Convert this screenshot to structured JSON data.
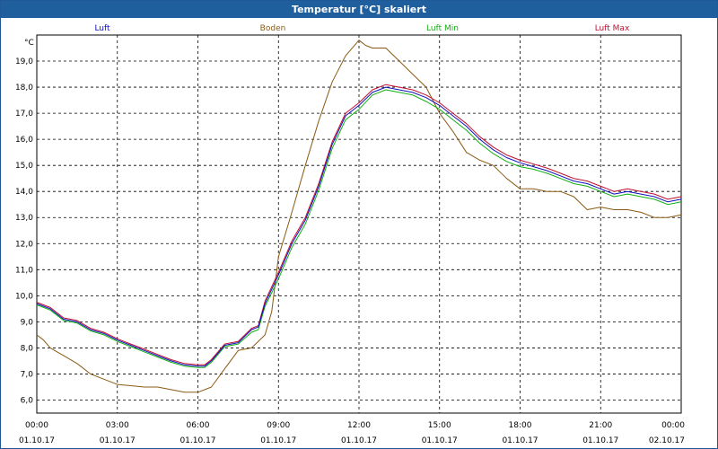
{
  "window": {
    "title": "Temperatur [°C] skaliert"
  },
  "chart_data": {
    "type": "line",
    "title": "Temperatur [°C] skaliert",
    "ylabel": "°C",
    "xlabel": "",
    "ylim": [
      5.5,
      20.0
    ],
    "xlim": [
      0,
      24
    ],
    "grid": true,
    "legend_position": "top",
    "y_ticks": [
      "6,0",
      "7,0",
      "8,0",
      "9,0",
      "10,0",
      "11,0",
      "12,0",
      "13,0",
      "14,0",
      "15,0",
      "16,0",
      "17,0",
      "18,0",
      "19,0"
    ],
    "y_tick_values": [
      6,
      7,
      8,
      9,
      10,
      11,
      12,
      13,
      14,
      15,
      16,
      17,
      18,
      19
    ],
    "x_tick_values": [
      0,
      3,
      6,
      9,
      12,
      15,
      18,
      21,
      24
    ],
    "x_tick_times": [
      "00:00",
      "03:00",
      "06:00",
      "09:00",
      "12:00",
      "15:00",
      "18:00",
      "21:00",
      "00:00"
    ],
    "x_tick_dates": [
      "01.10.17",
      "01.10.17",
      "01.10.17",
      "01.10.17",
      "01.10.17",
      "01.10.17",
      "01.10.17",
      "01.10.17",
      "02.10.17"
    ],
    "series": [
      {
        "name": "Luft",
        "color": "#1010c0",
        "x": [
          0,
          0.5,
          1,
          1.5,
          2,
          2.5,
          3,
          3.5,
          4,
          4.5,
          5,
          5.5,
          6,
          6.25,
          6.5,
          7,
          7.5,
          8,
          8.25,
          8.5,
          9,
          9.5,
          10,
          10.5,
          11,
          11.5,
          12,
          12.5,
          13,
          13.5,
          14,
          14.5,
          15,
          15.5,
          16,
          16.5,
          17,
          17.5,
          18,
          18.5,
          19,
          19.5,
          20,
          20.5,
          21,
          21.5,
          22,
          22.5,
          23,
          23.5,
          24
        ],
        "values": [
          9.7,
          9.5,
          9.1,
          9.0,
          8.7,
          8.55,
          8.3,
          8.1,
          7.9,
          7.7,
          7.5,
          7.35,
          7.3,
          7.3,
          7.5,
          8.1,
          8.2,
          8.7,
          8.8,
          9.7,
          10.8,
          12.0,
          12.9,
          14.2,
          15.8,
          16.9,
          17.3,
          17.8,
          18.0,
          17.9,
          17.8,
          17.6,
          17.3,
          16.9,
          16.5,
          16.0,
          15.6,
          15.3,
          15.1,
          14.95,
          14.8,
          14.6,
          14.4,
          14.3,
          14.1,
          13.9,
          14.0,
          13.9,
          13.8,
          13.6,
          13.7
        ]
      },
      {
        "name": "Boden",
        "color": "#8b5a14",
        "x": [
          0,
          0.25,
          0.5,
          1,
          1.5,
          2,
          2.5,
          3,
          3.5,
          4,
          4.5,
          5,
          5.5,
          6,
          6.5,
          7,
          7.5,
          8,
          8.5,
          8.75,
          9,
          9.5,
          10,
          10.5,
          11,
          11.5,
          12,
          12.25,
          12.5,
          13,
          13.5,
          14,
          14.5,
          15,
          15.5,
          16,
          16.5,
          17,
          17.5,
          18,
          18.5,
          19,
          19.5,
          20,
          20.5,
          21,
          21.5,
          22,
          22.5,
          23,
          23.5,
          24
        ],
        "values": [
          8.5,
          8.3,
          8.0,
          7.7,
          7.4,
          7.0,
          6.8,
          6.6,
          6.55,
          6.5,
          6.5,
          6.4,
          6.3,
          6.3,
          6.5,
          7.2,
          7.9,
          8.0,
          8.5,
          9.4,
          11.5,
          13.2,
          15.0,
          16.7,
          18.2,
          19.2,
          19.8,
          19.6,
          19.5,
          19.5,
          19.0,
          18.5,
          18.0,
          17.0,
          16.3,
          15.5,
          15.2,
          15.0,
          14.5,
          14.1,
          14.1,
          14.0,
          14.0,
          13.8,
          13.3,
          13.4,
          13.3,
          13.3,
          13.2,
          13.0,
          13.0,
          13.1
        ]
      },
      {
        "name": "Luft Min",
        "color": "#10b010",
        "x": [
          0,
          0.5,
          1,
          1.5,
          2,
          2.5,
          3,
          3.5,
          4,
          4.5,
          5,
          5.5,
          6,
          6.25,
          6.5,
          7,
          7.5,
          8,
          8.25,
          8.5,
          9,
          9.5,
          10,
          10.5,
          11,
          11.5,
          12,
          12.5,
          13,
          13.5,
          14,
          14.5,
          15,
          15.5,
          16,
          16.5,
          17,
          17.5,
          18,
          18.5,
          19,
          19.5,
          20,
          20.5,
          21,
          21.5,
          22,
          22.5,
          23,
          23.5,
          24
        ],
        "values": [
          9.65,
          9.45,
          9.05,
          8.95,
          8.65,
          8.5,
          8.25,
          8.05,
          7.85,
          7.65,
          7.45,
          7.3,
          7.25,
          7.25,
          7.45,
          8.05,
          8.15,
          8.6,
          8.7,
          9.6,
          10.65,
          11.85,
          12.75,
          14.05,
          15.65,
          16.75,
          17.15,
          17.7,
          17.9,
          17.8,
          17.7,
          17.45,
          17.15,
          16.75,
          16.35,
          15.85,
          15.45,
          15.15,
          14.95,
          14.85,
          14.7,
          14.5,
          14.3,
          14.2,
          14.0,
          13.8,
          13.9,
          13.8,
          13.7,
          13.5,
          13.6
        ]
      },
      {
        "name": "Luft Max",
        "color": "#c01030",
        "x": [
          0,
          0.5,
          1,
          1.5,
          2,
          2.5,
          3,
          3.5,
          4,
          4.5,
          5,
          5.5,
          6,
          6.25,
          6.5,
          7,
          7.5,
          8,
          8.25,
          8.5,
          9,
          9.5,
          10,
          10.5,
          11,
          11.5,
          12,
          12.5,
          13,
          13.5,
          14,
          14.5,
          15,
          15.5,
          16,
          16.5,
          17,
          17.5,
          18,
          18.5,
          19,
          19.5,
          20,
          20.5,
          21,
          21.5,
          22,
          22.5,
          23,
          23.5,
          24
        ],
        "values": [
          9.75,
          9.55,
          9.15,
          9.05,
          8.75,
          8.6,
          8.35,
          8.15,
          7.95,
          7.75,
          7.55,
          7.4,
          7.35,
          7.35,
          7.55,
          8.15,
          8.25,
          8.75,
          8.85,
          9.8,
          10.9,
          12.1,
          13.0,
          14.3,
          15.9,
          17.0,
          17.4,
          17.9,
          18.1,
          18.0,
          17.9,
          17.7,
          17.4,
          17.0,
          16.6,
          16.1,
          15.7,
          15.4,
          15.2,
          15.05,
          14.9,
          14.7,
          14.5,
          14.4,
          14.2,
          14.0,
          14.1,
          14.0,
          13.9,
          13.7,
          13.8
        ]
      }
    ]
  }
}
